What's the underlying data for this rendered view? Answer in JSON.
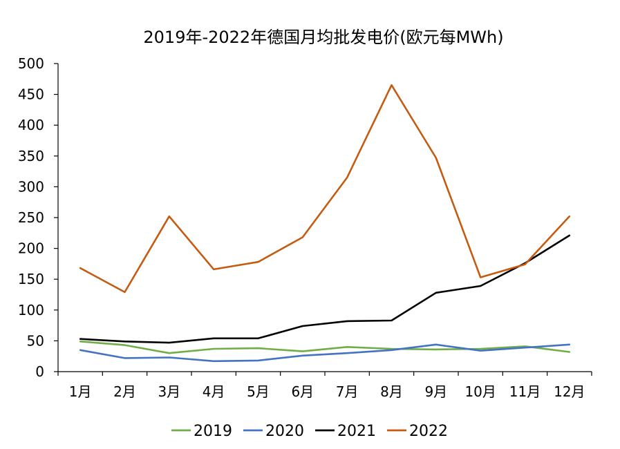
{
  "chart_data": {
    "type": "line",
    "title": "2019年-2022年德国月均批发电价(欧元每MWh)",
    "xlabel": "",
    "ylabel": "",
    "categories": [
      "1月",
      "2月",
      "3月",
      "4月",
      "5月",
      "6月",
      "7月",
      "8月",
      "9月",
      "10月",
      "11月",
      "12月"
    ],
    "ylim": [
      0,
      500
    ],
    "yticks": [
      0,
      50,
      100,
      150,
      200,
      250,
      300,
      350,
      400,
      450,
      500
    ],
    "grid": false,
    "legend_position": "bottom",
    "series": [
      {
        "name": "2019",
        "color": "#70ad47",
        "values": [
          49,
          43,
          30,
          37,
          38,
          33,
          40,
          37,
          36,
          37,
          41,
          32
        ]
      },
      {
        "name": "2020",
        "color": "#4472c4",
        "values": [
          35,
          22,
          23,
          17,
          18,
          26,
          30,
          35,
          44,
          34,
          39,
          44
        ]
      },
      {
        "name": "2021",
        "color": "#000000",
        "values": [
          53,
          49,
          47,
          54,
          54,
          74,
          82,
          83,
          128,
          139,
          176,
          221
        ]
      },
      {
        "name": "2022",
        "color": "#c55a11",
        "values": [
          168,
          129,
          252,
          166,
          178,
          218,
          315,
          465,
          347,
          153,
          174,
          252
        ]
      }
    ]
  }
}
